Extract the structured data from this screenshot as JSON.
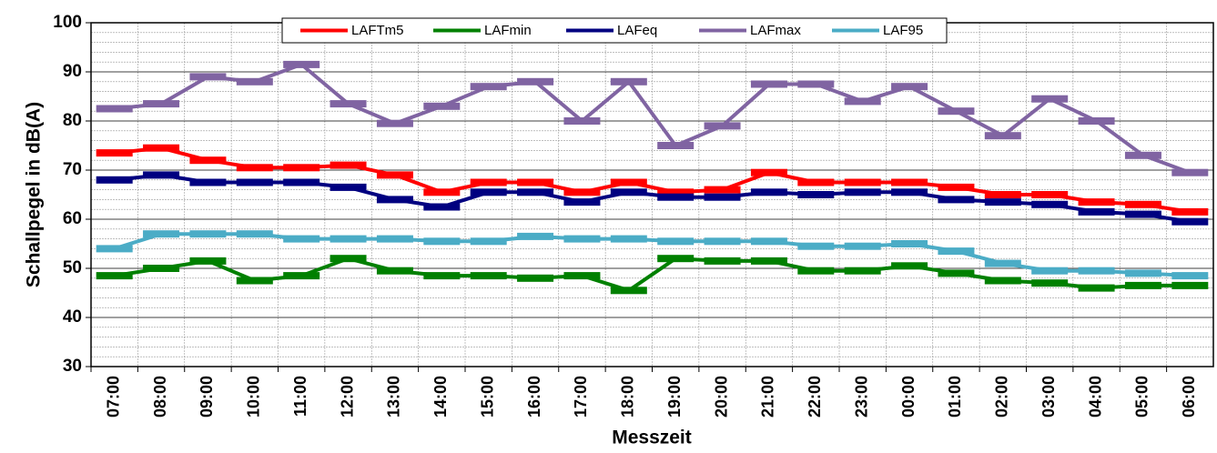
{
  "chart_data": {
    "type": "line",
    "x_label": "Messzeit",
    "y_label": "Schallpegel in dB(A)",
    "categories": [
      "07:00",
      "08:00",
      "09:00",
      "10:00",
      "11:00",
      "12:00",
      "13:00",
      "14:00",
      "15:00",
      "16:00",
      "17:00",
      "18:00",
      "19:00",
      "20:00",
      "21:00",
      "22:00",
      "23:00",
      "00:00",
      "01:00",
      "02:00",
      "03:00",
      "04:00",
      "05:00",
      "06:00"
    ],
    "series": [
      {
        "name": "LAFTm5",
        "color": "#ff0000",
        "values": [
          73.5,
          74.5,
          72,
          70.5,
          70.5,
          71,
          69,
          65.5,
          67.5,
          67.5,
          65.5,
          67.5,
          65.5,
          66,
          69.5,
          67.5,
          67.5,
          67.5,
          66.5,
          65,
          65,
          63.5,
          63,
          61.5
        ]
      },
      {
        "name": "LAFmin",
        "color": "#008000",
        "values": [
          48.5,
          50,
          51.5,
          47.5,
          48.5,
          52,
          49.5,
          48.5,
          48.5,
          48,
          48.5,
          45.5,
          52,
          51.5,
          51.5,
          49.5,
          49.5,
          50.5,
          49,
          47.5,
          47,
          46,
          46.5,
          46.5
        ]
      },
      {
        "name": "LAFeq",
        "color": "#000080",
        "values": [
          68,
          69,
          67.5,
          67.5,
          67.5,
          66.5,
          64,
          62.5,
          65.5,
          65.5,
          63.5,
          65.5,
          64.5,
          64.5,
          65.5,
          65,
          65.5,
          65.5,
          64,
          63.5,
          63,
          61.5,
          61,
          59.5
        ]
      },
      {
        "name": "LAFmax",
        "color": "#8064a2",
        "values": [
          82.5,
          83.5,
          89,
          88,
          91.5,
          83.5,
          79.5,
          83,
          87,
          88,
          80,
          88,
          75,
          79,
          87.5,
          87.5,
          84,
          87,
          82,
          77,
          84.5,
          80,
          73,
          69.5
        ]
      },
      {
        "name": "LAF95",
        "color": "#4bacc6",
        "values": [
          54,
          57,
          57,
          57,
          56,
          56,
          56,
          55.5,
          55.5,
          56.5,
          56,
          56,
          55.5,
          55.5,
          55.5,
          54.5,
          54.5,
          55,
          53.5,
          51,
          49.5,
          49.5,
          49,
          48.5
        ]
      }
    ],
    "ylim": [
      30,
      100
    ],
    "yticks": [
      30,
      40,
      50,
      60,
      70,
      80,
      90,
      100
    ],
    "grid": true,
    "legend": "top"
  }
}
